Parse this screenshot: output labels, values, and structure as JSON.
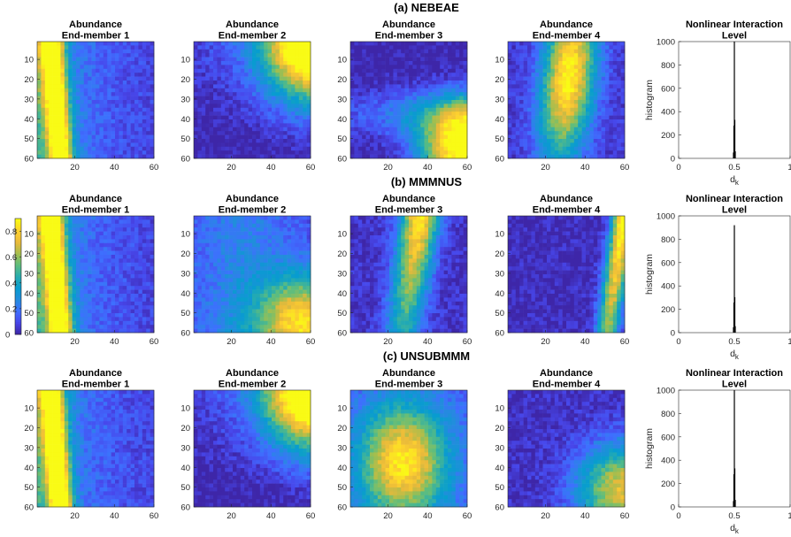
{
  "colors": {
    "low": "#3e26a8",
    "high": "#f9fb0e",
    "bar": "#000000",
    "axis": "#262626"
  },
  "chart_data": {
    "type": "heatmap",
    "colorbar": {
      "min": 0,
      "max": 0.9,
      "ticks": [
        "0",
        "0.2",
        "0.4",
        "0.6",
        "0.8"
      ],
      "tick_values": [
        0,
        0.2,
        0.4,
        0.6,
        0.8
      ],
      "colormap": "parula"
    },
    "map_axes": {
      "xticks": [
        "20",
        "40",
        "60"
      ],
      "xtick_values": [
        20,
        40,
        60
      ],
      "yticks": [
        "10",
        "20",
        "30",
        "40",
        "50",
        "60"
      ],
      "ytick_values": [
        10,
        20,
        30,
        40,
        50,
        60
      ],
      "range": [
        1,
        60
      ]
    },
    "hist_axes": {
      "xticks": [
        "0",
        "0.5",
        "1"
      ],
      "xtick_values": [
        0,
        0.5,
        1
      ],
      "yticks": [
        "0",
        "200",
        "400",
        "600",
        "800",
        "1000"
      ],
      "ytick_values": [
        0,
        200,
        400,
        600,
        800,
        1000
      ],
      "xlim": [
        0,
        1
      ],
      "ylim": [
        0,
        1000
      ],
      "ylabel": "histogram",
      "xlabel_main": "d",
      "xlabel_sub": "k"
    },
    "rows": [
      {
        "title": "(a) NEBEAE",
        "maps": [
          {
            "title1": "Abundance",
            "title2": "End-member 1",
            "pattern": "left"
          },
          {
            "title1": "Abundance",
            "title2": "End-member 2",
            "pattern": "topright"
          },
          {
            "title1": "Abundance",
            "title2": "End-member 3",
            "pattern": "bottomright"
          },
          {
            "title1": "Abundance",
            "title2": "End-member 4",
            "pattern": "centertop"
          }
        ],
        "hist": {
          "title1": "Nonlinear Interaction",
          "title2": "Level",
          "peak_x": 0.5,
          "peak_y": 1000
        }
      },
      {
        "title": "(b) MMMNUS",
        "maps": [
          {
            "title1": "Abundance",
            "title2": "End-member 1",
            "pattern": "left"
          },
          {
            "title1": "Abundance",
            "title2": "End-member 2",
            "pattern": "bottomright_soft"
          },
          {
            "title1": "Abundance",
            "title2": "End-member 3",
            "pattern": "vband"
          },
          {
            "title1": "Abundance",
            "title2": "End-member 4",
            "pattern": "rightedge"
          }
        ],
        "hist": {
          "title1": "Nonlinear Interaction",
          "title2": "Level",
          "peak_x": 0.5,
          "peak_y": 920
        }
      },
      {
        "title": "(c) UNSUBMMM",
        "maps": [
          {
            "title1": "Abundance",
            "title2": "End-member 1",
            "pattern": "left"
          },
          {
            "title1": "Abundance",
            "title2": "End-member 2",
            "pattern": "topright"
          },
          {
            "title1": "Abundance",
            "title2": "End-member 3",
            "pattern": "center"
          },
          {
            "title1": "Abundance",
            "title2": "End-member 4",
            "pattern": "bottomright_noisy"
          }
        ],
        "hist": {
          "title1": "Nonlinear Interaction",
          "title2": "Level",
          "peak_x": 0.5,
          "peak_y": 1000
        }
      }
    ]
  }
}
